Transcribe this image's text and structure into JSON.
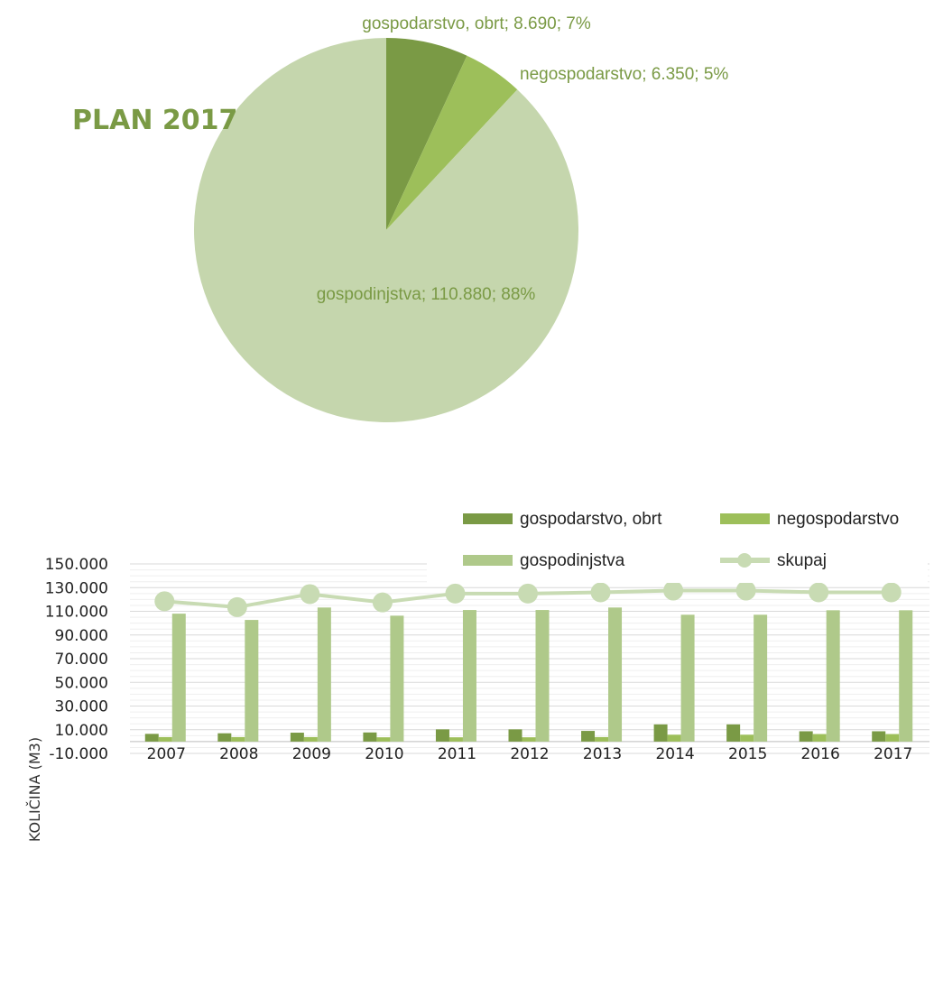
{
  "chart_data": [
    {
      "type": "pie",
      "title": "PLAN 2017",
      "slices": [
        {
          "name": "gospodarstvo, obrt",
          "value": 8690,
          "label": "gospodarstvo, obrt; 8.690; 7%",
          "color": "#7a9a45"
        },
        {
          "name": "negospodarstvo",
          "value": 6350,
          "label": "negospodarstvo; 6.350; 5%",
          "color": "#9dbf5a"
        },
        {
          "name": "gospodinjstva",
          "value": 110880,
          "label": "gospodinjstva; 110.880; 88%",
          "color": "#c5d6ad"
        }
      ],
      "label_color": "#7a9a45",
      "title_color": "#7a9a45"
    },
    {
      "type": "bar",
      "categories": [
        "2007",
        "2008",
        "2009",
        "2010",
        "2011",
        "2012",
        "2013",
        "2014",
        "2015",
        "2016",
        "2017"
      ],
      "series": [
        {
          "name": "gospodarstvo, obrt",
          "type": "bar",
          "color": "#7a9a45",
          "values": [
            6500,
            7000,
            7500,
            7700,
            10300,
            10300,
            9000,
            14500,
            14500,
            8690,
            8690
          ]
        },
        {
          "name": "negospodarstvo",
          "type": "bar",
          "color": "#9dbf5a",
          "values": [
            3800,
            3800,
            3800,
            3600,
            3600,
            3600,
            3800,
            5800,
            5800,
            6350,
            6350
          ]
        },
        {
          "name": "gospodinjstva",
          "type": "bar",
          "color": "#afc98a",
          "values": [
            108000,
            102700,
            113200,
            106300,
            111100,
            111100,
            113200,
            107100,
            107100,
            110880,
            110880
          ]
        },
        {
          "name": "skupaj",
          "type": "line",
          "color": "#c8dbb3",
          "values": [
            118500,
            113500,
            124500,
            117500,
            125000,
            125000,
            126000,
            127500,
            127500,
            126000,
            126000
          ]
        }
      ],
      "ylabel": "KOLIČINA (M3)",
      "ylim": [
        -10000,
        150000
      ],
      "y_ticks": [
        "-10.000",
        "10.000",
        "30.000",
        "50.000",
        "70.000",
        "90.000",
        "110.000",
        "130.000",
        "150.000"
      ],
      "grid": true,
      "legend": "top-right"
    }
  ]
}
